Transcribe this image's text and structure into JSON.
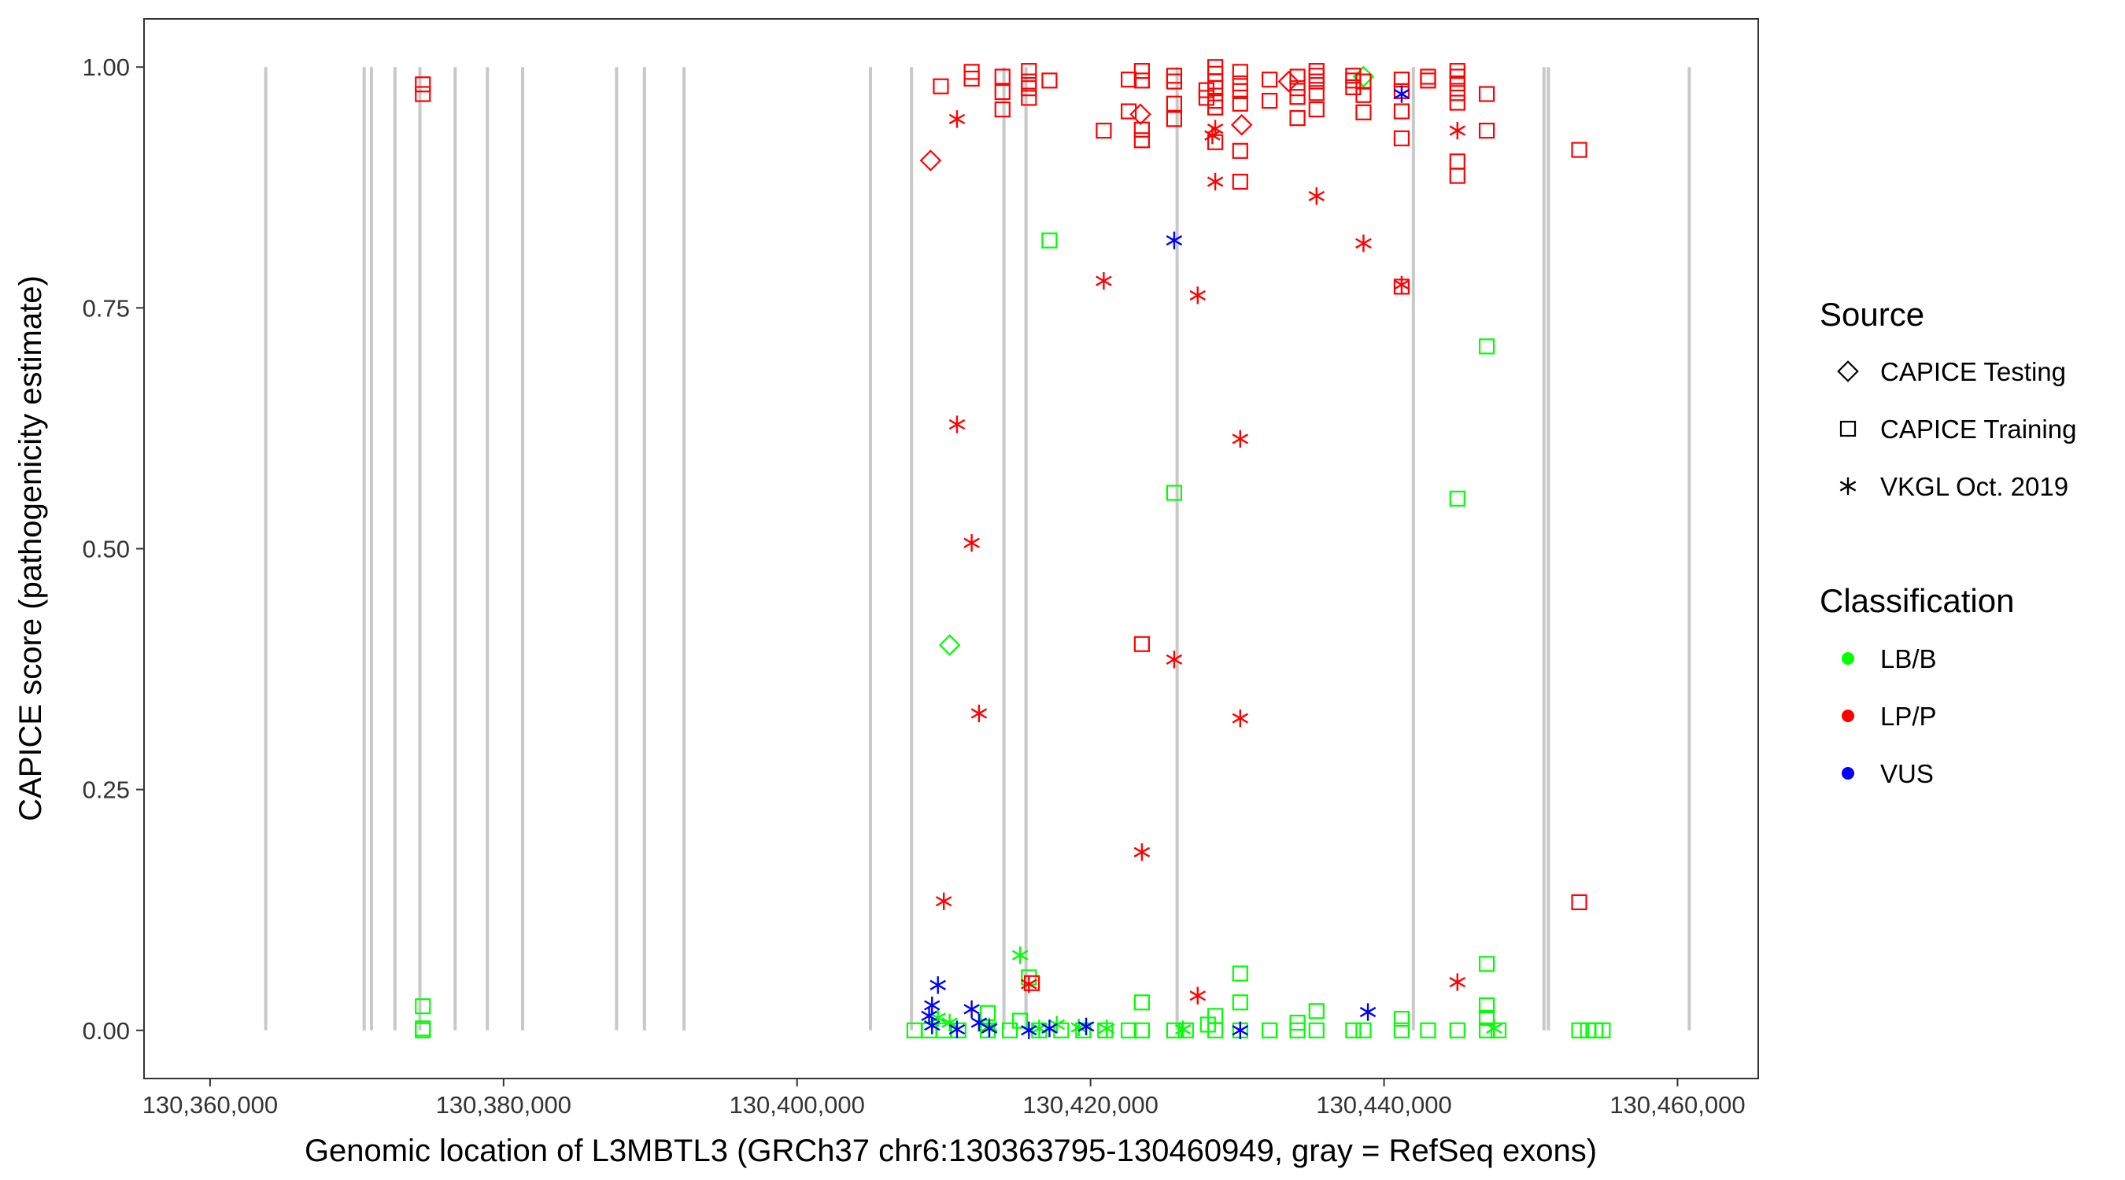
{
  "chart_data": {
    "type": "scatter",
    "xlabel": "Genomic location of L3MBTL3 (GRCh37 chr6:130363795-130460949, gray = RefSeq exons)",
    "ylabel": "CAPICE score (pathogenicity estimate)",
    "xlim": [
      130355500,
      130465500
    ],
    "ylim": [
      -0.05,
      1.05
    ],
    "x_ticks": [
      130360000,
      130380000,
      130400000,
      130420000,
      130440000,
      130460000
    ],
    "x_tick_labels": [
      "130,360,000",
      "130,380,000",
      "130,400,000",
      "130,420,000",
      "130,440,000",
      "130,460,000"
    ],
    "y_ticks": [
      0,
      0.25,
      0.5,
      0.75,
      1.0
    ],
    "y_tick_labels": [
      "0.00",
      "0.25",
      "0.50",
      "0.75",
      "1.00"
    ],
    "grid": false,
    "exon_positions": [
      130363795,
      130370500,
      130371000,
      130372600,
      130374300,
      130376700,
      130378900,
      130381300,
      130387700,
      130389600,
      130392300,
      130405000,
      130407800,
      130414100,
      130415600,
      130425900,
      130442000,
      130450900,
      130451200,
      130460800
    ],
    "legend": {
      "placement": "right",
      "source_title": "Source",
      "source_items": [
        {
          "label": "CAPICE Testing",
          "shape": "diamond"
        },
        {
          "label": "CAPICE Training",
          "shape": "square"
        },
        {
          "label": "VKGL Oct. 2019",
          "shape": "asterisk"
        }
      ],
      "class_title": "Classification",
      "class_items": [
        {
          "label": "LB/B",
          "color": "#00ff00"
        },
        {
          "label": "LP/P",
          "color": "#ff0000"
        },
        {
          "label": "VUS",
          "color": "#0000ff"
        }
      ]
    },
    "colors": {
      "LB/B": "#00ff00",
      "LP/P": "#ff0000",
      "VUS": "#0000ff",
      "exon": "#c8c8c8"
    },
    "series": [
      {
        "name": "CAPICE Testing",
        "classification": "LP/P",
        "shape": "diamond",
        "points": [
          [
            130409100,
            0.903
          ],
          [
            130423400,
            0.951
          ],
          [
            130430300,
            0.94
          ],
          [
            130433500,
            0.985
          ]
        ]
      },
      {
        "name": "CAPICE Testing",
        "classification": "LB/B",
        "shape": "diamond",
        "points": [
          [
            130410400,
            0.4
          ],
          [
            130438600,
            0.99
          ]
        ]
      },
      {
        "name": "CAPICE Training",
        "classification": "LP/P",
        "shape": "square",
        "points": [
          [
            130374500,
            0.982
          ],
          [
            130374500,
            0.972
          ],
          [
            130409800,
            0.98
          ],
          [
            130411900,
            0.995
          ],
          [
            130411900,
            0.988
          ],
          [
            130414000,
            0.99
          ],
          [
            130414000,
            0.974
          ],
          [
            130414000,
            0.956
          ],
          [
            130415800,
            0.996
          ],
          [
            130415800,
            0.985
          ],
          [
            130415800,
            0.978
          ],
          [
            130415800,
            0.968
          ],
          [
            130417200,
            0.986
          ],
          [
            130420900,
            0.934
          ],
          [
            130422600,
            0.987
          ],
          [
            130422600,
            0.954
          ],
          [
            130423500,
            0.996
          ],
          [
            130423500,
            0.986
          ],
          [
            130423500,
            0.935
          ],
          [
            130423500,
            0.924
          ],
          [
            130425700,
            0.991
          ],
          [
            130425700,
            0.985
          ],
          [
            130425700,
            0.962
          ],
          [
            130425700,
            0.946
          ],
          [
            130427900,
            0.976
          ],
          [
            130427900,
            0.968
          ],
          [
            130428500,
            1.0
          ],
          [
            130428500,
            0.993
          ],
          [
            130428500,
            0.985
          ],
          [
            130428500,
            0.978
          ],
          [
            130428500,
            0.965
          ],
          [
            130428500,
            0.958
          ],
          [
            130428500,
            0.922
          ],
          [
            130430200,
            0.995
          ],
          [
            130430200,
            0.983
          ],
          [
            130430200,
            0.975
          ],
          [
            130430200,
            0.962
          ],
          [
            130430200,
            0.913
          ],
          [
            130430200,
            0.881
          ],
          [
            130432200,
            0.987
          ],
          [
            130432200,
            0.965
          ],
          [
            130434100,
            0.99
          ],
          [
            130434100,
            0.978
          ],
          [
            130434100,
            0.969
          ],
          [
            130434100,
            0.947
          ],
          [
            130435400,
            0.996
          ],
          [
            130435400,
            0.991
          ],
          [
            130435400,
            0.985
          ],
          [
            130435400,
            0.973
          ],
          [
            130435400,
            0.956
          ],
          [
            130437900,
            0.991
          ],
          [
            130437900,
            0.986
          ],
          [
            130437900,
            0.979
          ],
          [
            130438600,
            0.985
          ],
          [
            130438600,
            0.971
          ],
          [
            130438600,
            0.953
          ],
          [
            130441200,
            0.987
          ],
          [
            130441200,
            0.975
          ],
          [
            130441200,
            0.954
          ],
          [
            130441200,
            0.926
          ],
          [
            130443000,
            0.99
          ],
          [
            130443000,
            0.986
          ],
          [
            130445000,
            0.996
          ],
          [
            130445000,
            0.99
          ],
          [
            130445000,
            0.983
          ],
          [
            130445000,
            0.973
          ],
          [
            130445000,
            0.963
          ],
          [
            130445000,
            0.902
          ],
          [
            130445000,
            0.887
          ],
          [
            130447000,
            0.972
          ],
          [
            130447000,
            0.934
          ],
          [
            130453300,
            0.914
          ],
          [
            130441200,
            0.772
          ],
          [
            130423500,
            0.401
          ],
          [
            130453300,
            0.133
          ],
          [
            130416000,
            0.049
          ]
        ]
      },
      {
        "name": "CAPICE Training",
        "classification": "LB/B",
        "shape": "square",
        "points": [
          [
            130374500,
            0.025
          ],
          [
            130374500,
            0.002
          ],
          [
            130374500,
            0.0
          ],
          [
            130417200,
            0.82
          ],
          [
            130447000,
            0.71
          ],
          [
            130445000,
            0.552
          ],
          [
            130425700,
            0.558
          ],
          [
            130415800,
            0.055
          ],
          [
            130430200,
            0.059
          ],
          [
            130447000,
            0.069
          ],
          [
            130430200,
            0.029
          ],
          [
            130423500,
            0.029
          ],
          [
            130435400,
            0.02
          ],
          [
            130413000,
            0.018
          ],
          [
            130428500,
            0.015
          ],
          [
            130441200,
            0.012
          ],
          [
            130447000,
            0.026
          ],
          [
            130447000,
            0.013
          ],
          [
            130415200,
            0.01
          ],
          [
            130434100,
            0.008
          ],
          [
            130428000,
            0.006
          ],
          [
            130408000,
            0.0
          ],
          [
            130409000,
            0.0
          ],
          [
            130410000,
            0.0
          ],
          [
            130411000,
            0.0
          ],
          [
            130413000,
            0.0
          ],
          [
            130414500,
            0.0
          ],
          [
            130416500,
            0.0
          ],
          [
            130418000,
            0.0
          ],
          [
            130419500,
            0.0
          ],
          [
            130421000,
            0.0
          ],
          [
            130422600,
            0.0
          ],
          [
            130423500,
            0.0
          ],
          [
            130425700,
            0.0
          ],
          [
            130426500,
            0.0
          ],
          [
            130428500,
            0.0
          ],
          [
            130430200,
            0.0
          ],
          [
            130432200,
            0.0
          ],
          [
            130434100,
            0.0
          ],
          [
            130435400,
            0.0
          ],
          [
            130437900,
            0.0
          ],
          [
            130438600,
            0.0
          ],
          [
            130441200,
            0.0
          ],
          [
            130443000,
            0.0
          ],
          [
            130445000,
            0.0
          ],
          [
            130447000,
            0.0
          ],
          [
            130447800,
            0.0
          ],
          [
            130453300,
            0.0
          ],
          [
            130453900,
            0.0
          ],
          [
            130454400,
            0.0
          ],
          [
            130454900,
            0.0
          ]
        ]
      },
      {
        "name": "VKGL Oct. 2019",
        "classification": "LP/P",
        "shape": "asterisk",
        "points": [
          [
            130410900,
            0.946
          ],
          [
            130428500,
            0.936
          ],
          [
            130428300,
            0.929
          ],
          [
            130445000,
            0.934
          ],
          [
            130428500,
            0.881
          ],
          [
            130435400,
            0.866
          ],
          [
            130438600,
            0.817
          ],
          [
            130420900,
            0.778
          ],
          [
            130427300,
            0.763
          ],
          [
            130441200,
            0.774
          ],
          [
            130410900,
            0.629
          ],
          [
            130430200,
            0.614
          ],
          [
            130411900,
            0.506
          ],
          [
            130425700,
            0.385
          ],
          [
            130412400,
            0.329
          ],
          [
            130430200,
            0.324
          ],
          [
            130423500,
            0.185
          ],
          [
            130410000,
            0.134
          ],
          [
            130445000,
            0.05
          ],
          [
            130427300,
            0.036
          ],
          [
            130415800,
            0.048
          ]
        ]
      },
      {
        "name": "VKGL Oct. 2019",
        "classification": "VUS",
        "shape": "asterisk",
        "points": [
          [
            130425700,
            0.82
          ],
          [
            130441200,
            0.972
          ],
          [
            130409600,
            0.047
          ],
          [
            130409200,
            0.026
          ],
          [
            130409000,
            0.015
          ],
          [
            130411900,
            0.022
          ],
          [
            130409200,
            0.005
          ],
          [
            130410900,
            0.001
          ],
          [
            130412400,
            0.008
          ],
          [
            130413100,
            0.002
          ],
          [
            130415800,
            0.0
          ],
          [
            130417200,
            0.002
          ],
          [
            130419700,
            0.004
          ],
          [
            130430200,
            0.0
          ],
          [
            130438900,
            0.019
          ]
        ]
      },
      {
        "name": "VKGL Oct. 2019",
        "classification": "LB/B",
        "shape": "asterisk",
        "points": [
          [
            130415200,
            0.078
          ],
          [
            130409600,
            0.013
          ],
          [
            130410400,
            0.008
          ],
          [
            130413100,
            0.004
          ],
          [
            130416500,
            0.002
          ],
          [
            130417700,
            0.006
          ],
          [
            130419200,
            0.003
          ],
          [
            130421100,
            0.002
          ],
          [
            130426300,
            0.001
          ],
          [
            130447500,
            0.002
          ]
        ]
      }
    ]
  }
}
